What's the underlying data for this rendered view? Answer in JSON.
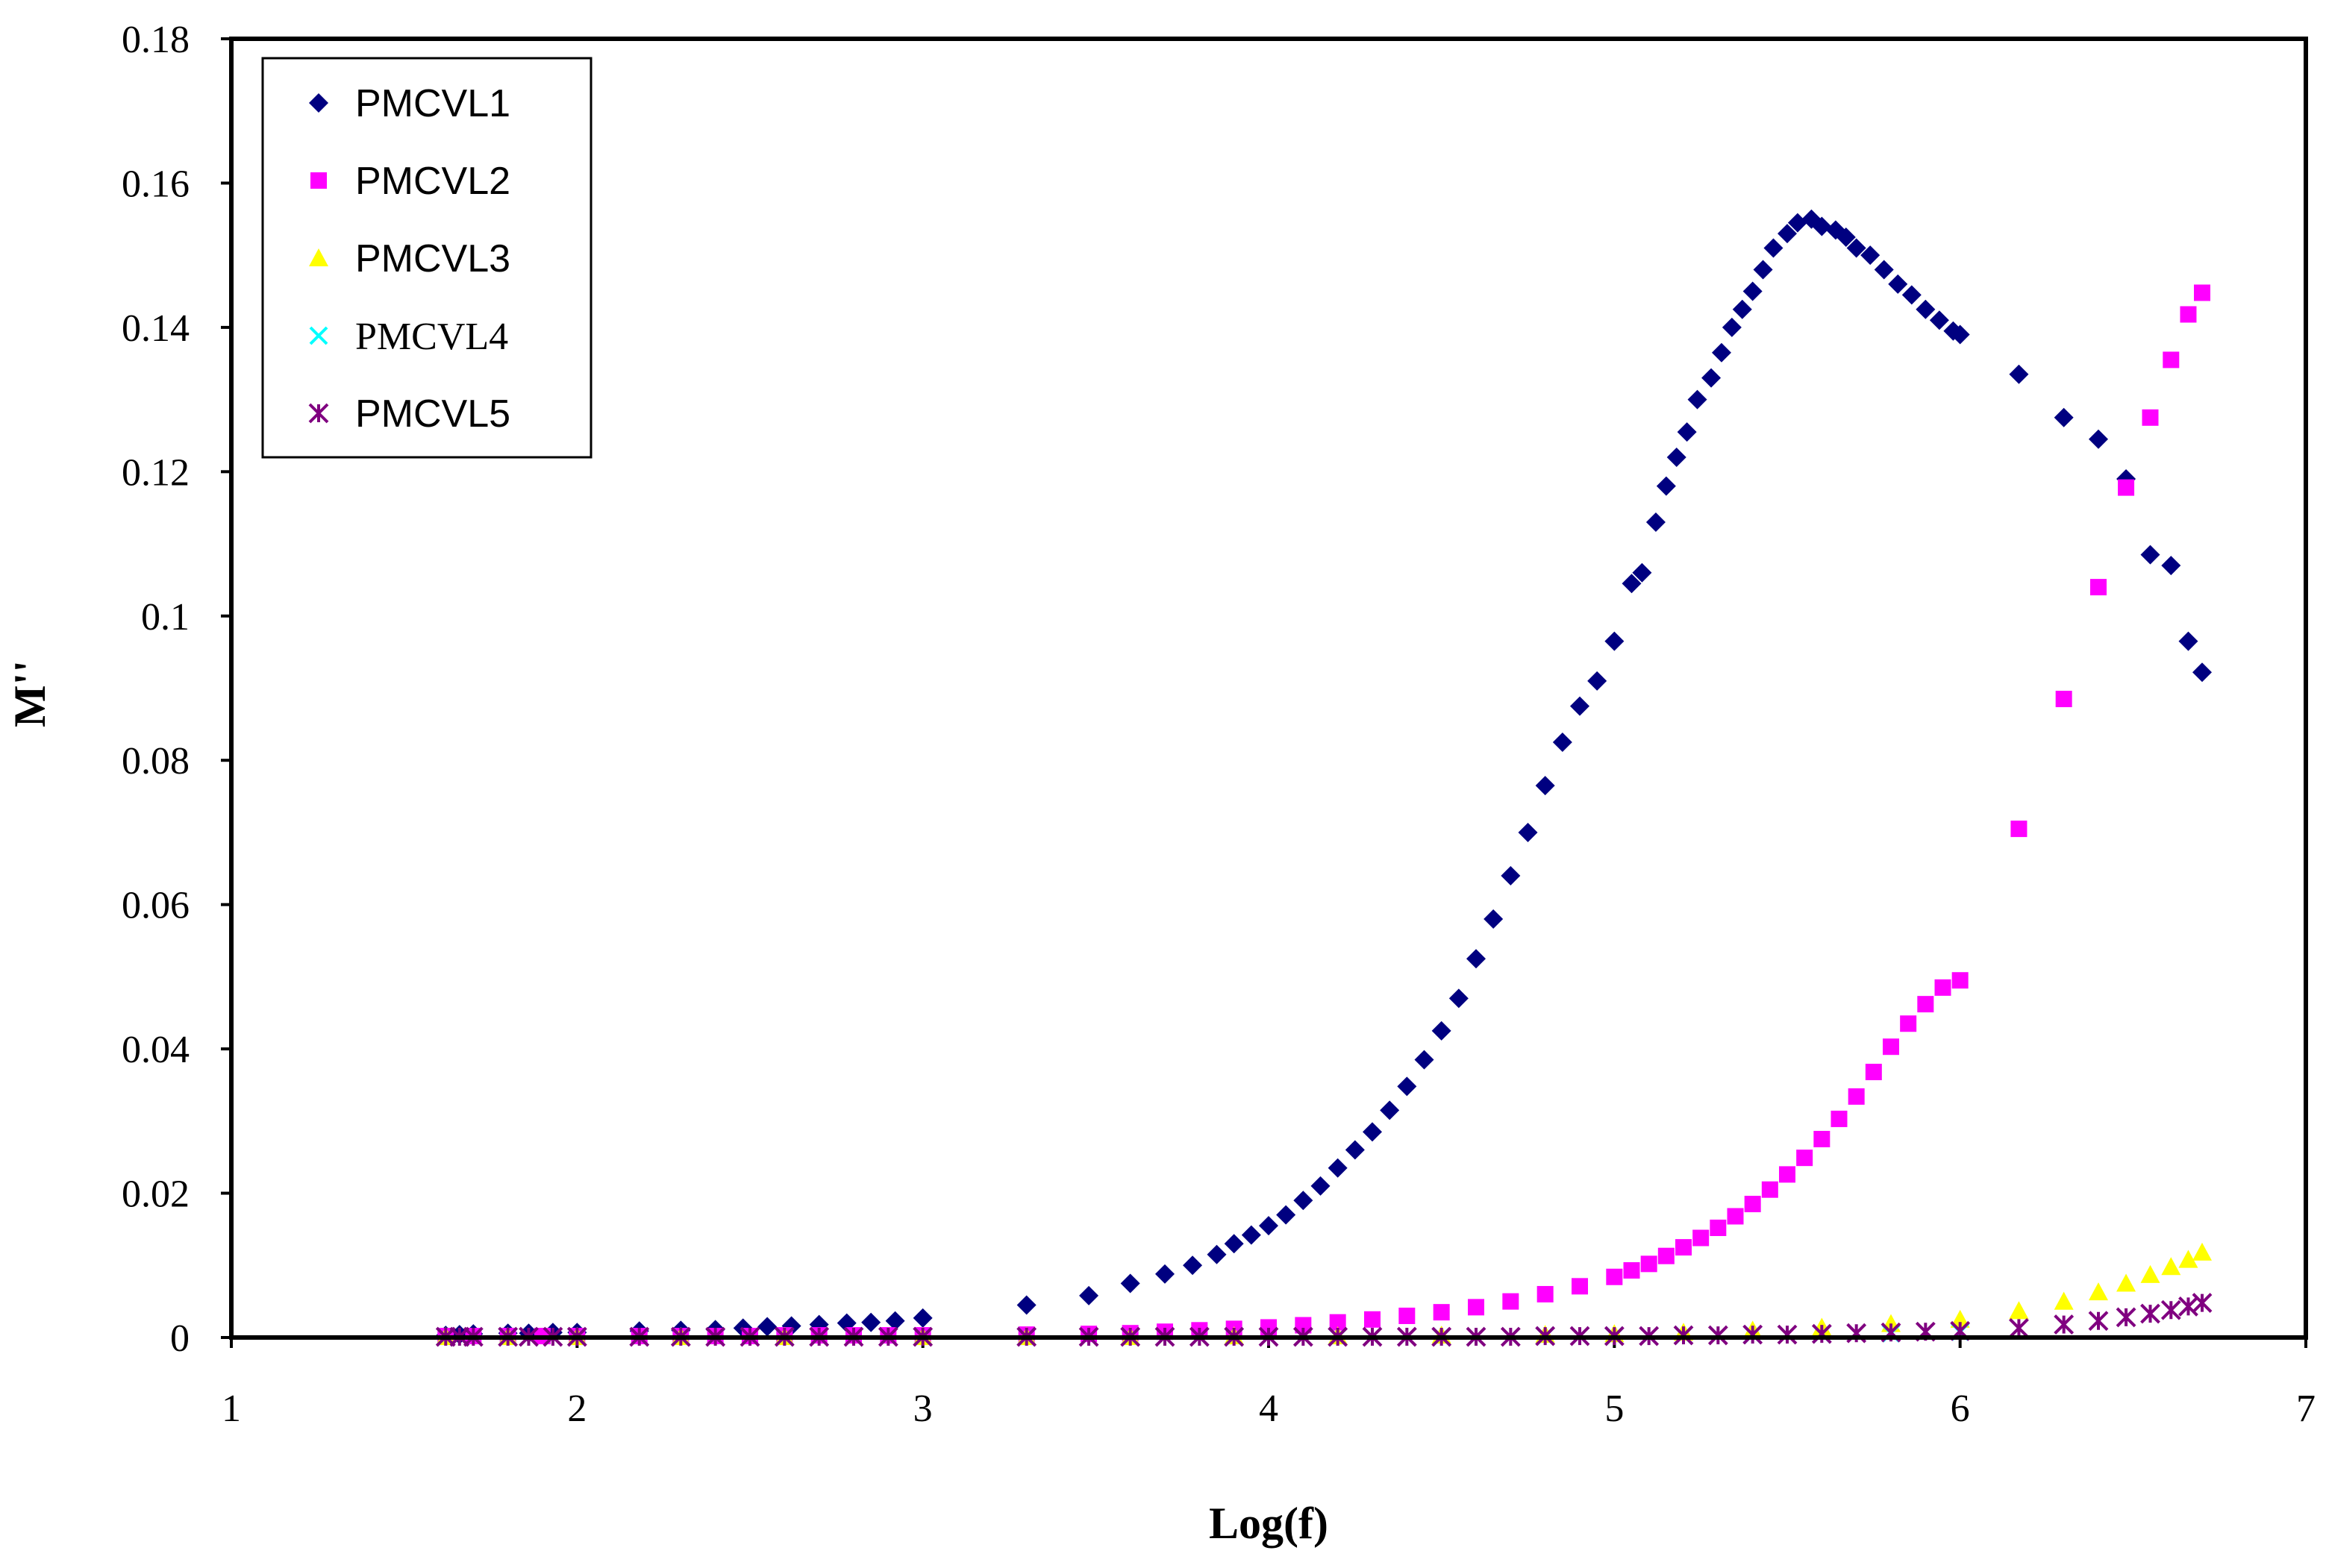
{
  "chart_data": {
    "type": "scatter",
    "title": "",
    "xlabel": "Log(f)",
    "ylabel": "M''",
    "xlim": [
      1,
      7
    ],
    "ylim": [
      0,
      0.18
    ],
    "x_ticks": [
      1,
      2,
      3,
      4,
      5,
      6,
      7
    ],
    "y_ticks": [
      0,
      0.02,
      0.04,
      0.06,
      0.08,
      0.1,
      0.12,
      0.14,
      0.16,
      0.18
    ],
    "y_tick_labels": [
      "0",
      "0.02",
      "0.04",
      "0.06",
      "0.08",
      "0.1",
      "0.12",
      "0.14",
      "0.16",
      "0.18"
    ],
    "grid": false,
    "legend_position": "top-left",
    "series": [
      {
        "name": "PMCVL1",
        "marker": "diamond",
        "color": "#000080",
        "x": [
          1.62,
          1.66,
          1.7,
          1.8,
          1.86,
          1.93,
          2.0,
          2.18,
          2.3,
          2.4,
          2.48,
          2.55,
          2.62,
          2.7,
          2.78,
          2.85,
          2.92,
          3.0,
          3.3,
          3.48,
          3.6,
          3.7,
          3.78,
          3.85,
          3.9,
          3.95,
          4.0,
          4.05,
          4.1,
          4.15,
          4.2,
          4.25,
          4.3,
          4.35,
          4.4,
          4.45,
          4.5,
          4.55,
          4.6,
          4.65,
          4.7,
          4.75,
          4.8,
          4.85,
          4.9,
          4.95,
          5.0,
          5.05,
          5.08,
          5.12,
          5.15,
          5.18,
          5.21,
          5.24,
          5.28,
          5.31,
          5.34,
          5.37,
          5.4,
          5.43,
          5.46,
          5.5,
          5.53,
          5.57,
          5.6,
          5.64,
          5.67,
          5.7,
          5.74,
          5.78,
          5.82,
          5.86,
          5.9,
          5.94,
          5.98,
          6.0,
          6.17,
          6.3,
          6.4,
          6.48,
          6.55,
          6.61,
          6.66,
          6.7
        ],
        "y": [
          0.0003,
          0.0004,
          0.0005,
          0.0006,
          0.0006,
          0.0007,
          0.0007,
          0.0009,
          0.001,
          0.0011,
          0.0013,
          0.0015,
          0.0016,
          0.0018,
          0.002,
          0.0021,
          0.0023,
          0.0027,
          0.0045,
          0.0058,
          0.0075,
          0.0088,
          0.01,
          0.0115,
          0.013,
          0.0142,
          0.0155,
          0.017,
          0.019,
          0.021,
          0.0235,
          0.026,
          0.0285,
          0.0315,
          0.0348,
          0.0385,
          0.0425,
          0.047,
          0.0525,
          0.058,
          0.064,
          0.07,
          0.0765,
          0.0825,
          0.0875,
          0.091,
          0.0965,
          0.1045,
          0.106,
          0.113,
          0.118,
          0.122,
          0.1255,
          0.13,
          0.133,
          0.1365,
          0.14,
          0.1425,
          0.145,
          0.148,
          0.151,
          0.153,
          0.1545,
          0.155,
          0.154,
          0.1535,
          0.1525,
          0.151,
          0.15,
          0.148,
          0.146,
          0.1445,
          0.1425,
          0.141,
          0.1395,
          0.139,
          0.1335,
          0.1275,
          0.1245,
          0.119,
          0.1085,
          0.107,
          0.0965,
          0.0922
        ]
      },
      {
        "name": "PMCVL2",
        "marker": "square",
        "color": "#FF00FF",
        "x": [
          1.62,
          1.7,
          1.8,
          1.9,
          2.0,
          2.18,
          2.3,
          2.4,
          2.5,
          2.6,
          2.7,
          2.8,
          2.9,
          3.0,
          3.3,
          3.48,
          3.6,
          3.7,
          3.8,
          3.9,
          4.0,
          4.1,
          4.2,
          4.3,
          4.4,
          4.5,
          4.6,
          4.7,
          4.8,
          4.9,
          5.0,
          5.05,
          5.1,
          5.15,
          5.2,
          5.25,
          5.3,
          5.35,
          5.4,
          5.45,
          5.5,
          5.55,
          5.6,
          5.65,
          5.7,
          5.75,
          5.8,
          5.85,
          5.9,
          5.95,
          6.0,
          6.17,
          6.3,
          6.4,
          6.48,
          6.55,
          6.61,
          6.66,
          6.7
        ],
        "y": [
          0.0002,
          0.0002,
          0.0002,
          0.0002,
          0.0002,
          0.0002,
          0.0002,
          0.0002,
          0.0002,
          0.0003,
          0.0003,
          0.0003,
          0.0003,
          0.0003,
          0.0004,
          0.0005,
          0.0006,
          0.0008,
          0.001,
          0.0012,
          0.0014,
          0.0017,
          0.0021,
          0.0025,
          0.003,
          0.0035,
          0.0042,
          0.005,
          0.006,
          0.0071,
          0.0084,
          0.0093,
          0.0102,
          0.0113,
          0.0125,
          0.0138,
          0.0152,
          0.0168,
          0.0185,
          0.0205,
          0.0226,
          0.0249,
          0.0275,
          0.0303,
          0.0334,
          0.0368,
          0.0403,
          0.0435,
          0.0462,
          0.0485,
          0.0495,
          0.0705,
          0.0885,
          0.104,
          0.1178,
          0.1275,
          0.1355,
          0.1418,
          0.1448
        ]
      },
      {
        "name": "PMCVL3",
        "marker": "triangle",
        "color": "#FFFF00",
        "x": [
          1.62,
          1.8,
          2.0,
          2.3,
          2.6,
          3.0,
          3.3,
          3.6,
          3.9,
          4.2,
          4.5,
          4.8,
          5.0,
          5.2,
          5.4,
          5.6,
          5.8,
          6.0,
          6.17,
          6.3,
          6.4,
          6.48,
          6.55,
          6.61,
          6.66,
          6.7
        ],
        "y": [
          0.0001,
          0.0001,
          0.0001,
          0.0001,
          0.0001,
          0.0001,
          0.0001,
          0.0001,
          0.0002,
          0.0002,
          0.0003,
          0.0004,
          0.0005,
          0.0007,
          0.001,
          0.0014,
          0.0019,
          0.0025,
          0.0037,
          0.005,
          0.0063,
          0.0075,
          0.0087,
          0.0098,
          0.0108,
          0.0118
        ]
      },
      {
        "name": "PMCVL4",
        "marker": "x",
        "color": "#00FFFF",
        "x": [
          1.62,
          1.8,
          2.0,
          2.3,
          2.6,
          3.0,
          3.3,
          3.6,
          3.9,
          4.2,
          4.5,
          4.8,
          5.0,
          5.2,
          5.4,
          5.6,
          5.8,
          6.0
        ],
        "y": [
          0.0001,
          0.0001,
          0.0001,
          0.0001,
          0.0001,
          0.0001,
          0.0001,
          0.0001,
          0.0001,
          0.0001,
          0.0001,
          0.0002,
          0.0002,
          0.0003,
          0.0004,
          0.0005,
          0.0006,
          0.0008
        ]
      },
      {
        "name": "PMCVL5",
        "marker": "asterisk",
        "color": "#800080",
        "x": [
          1.62,
          1.66,
          1.7,
          1.8,
          1.86,
          1.93,
          2.0,
          2.18,
          2.3,
          2.4,
          2.5,
          2.6,
          2.7,
          2.8,
          2.9,
          3.0,
          3.3,
          3.48,
          3.6,
          3.7,
          3.8,
          3.9,
          4.0,
          4.1,
          4.2,
          4.3,
          4.4,
          4.5,
          4.6,
          4.7,
          4.8,
          4.9,
          5.0,
          5.1,
          5.2,
          5.3,
          5.4,
          5.5,
          5.6,
          5.7,
          5.8,
          5.9,
          6.0,
          6.17,
          6.3,
          6.4,
          6.48,
          6.55,
          6.61,
          6.66,
          6.7
        ],
        "y": [
          0.0001,
          0.0001,
          0.0001,
          0.0001,
          0.0001,
          0.0001,
          0.0001,
          0.0001,
          0.0001,
          0.0001,
          0.0001,
          0.0001,
          0.0001,
          0.0001,
          0.0001,
          0.0001,
          0.0001,
          0.0001,
          0.0001,
          0.0001,
          0.0001,
          0.0001,
          0.0001,
          0.0001,
          0.0001,
          0.0001,
          0.0001,
          0.0001,
          0.0001,
          0.0001,
          0.0002,
          0.0002,
          0.0002,
          0.0002,
          0.0003,
          0.0003,
          0.0004,
          0.0004,
          0.0005,
          0.0006,
          0.0007,
          0.0008,
          0.0009,
          0.0013,
          0.0018,
          0.0023,
          0.0028,
          0.0033,
          0.0038,
          0.0043,
          0.0048
        ]
      }
    ]
  }
}
